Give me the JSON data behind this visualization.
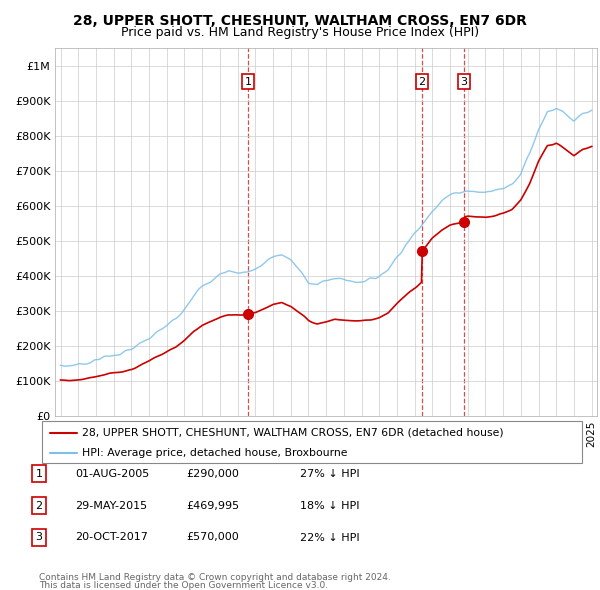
{
  "title": "28, UPPER SHOTT, CHESHUNT, WALTHAM CROSS, EN7 6DR",
  "subtitle": "Price paid vs. HM Land Registry's House Price Index (HPI)",
  "legend_entry1": "28, UPPER SHOTT, CHESHUNT, WALTHAM CROSS, EN7 6DR (detached house)",
  "legend_entry2": "HPI: Average price, detached house, Broxbourne",
  "transactions": [
    {
      "num": 1,
      "date": "01-AUG-2005",
      "price": "£290,000",
      "pct": "27%",
      "dir": "↓",
      "year": 2005.58
    },
    {
      "num": 2,
      "date": "29-MAY-2015",
      "price": "£469,995",
      "pct": "18%",
      "dir": "↓",
      "year": 2015.41
    },
    {
      "num": 3,
      "date": "20-OCT-2017",
      "price": "£570,000",
      "pct": "22%",
      "dir": "↓",
      "year": 2017.79
    }
  ],
  "footnote1": "Contains HM Land Registry data © Crown copyright and database right 2024.",
  "footnote2": "This data is licensed under the Open Government Licence v3.0.",
  "hpi_color": "#7bbfea",
  "price_color": "#cc0000",
  "marker_color": "#cc0000",
  "ylim": [
    0,
    1050000
  ],
  "yticks": [
    0,
    100000,
    200000,
    300000,
    400000,
    500000,
    600000,
    700000,
    800000,
    900000,
    1000000
  ],
  "background_color": "#ffffff",
  "grid_color": "#cccccc",
  "trans1_price": 290000,
  "trans1_year": 2005.58,
  "trans2_price": 469995,
  "trans2_year": 2015.41,
  "trans3_price": 570000,
  "trans3_year": 2017.79
}
